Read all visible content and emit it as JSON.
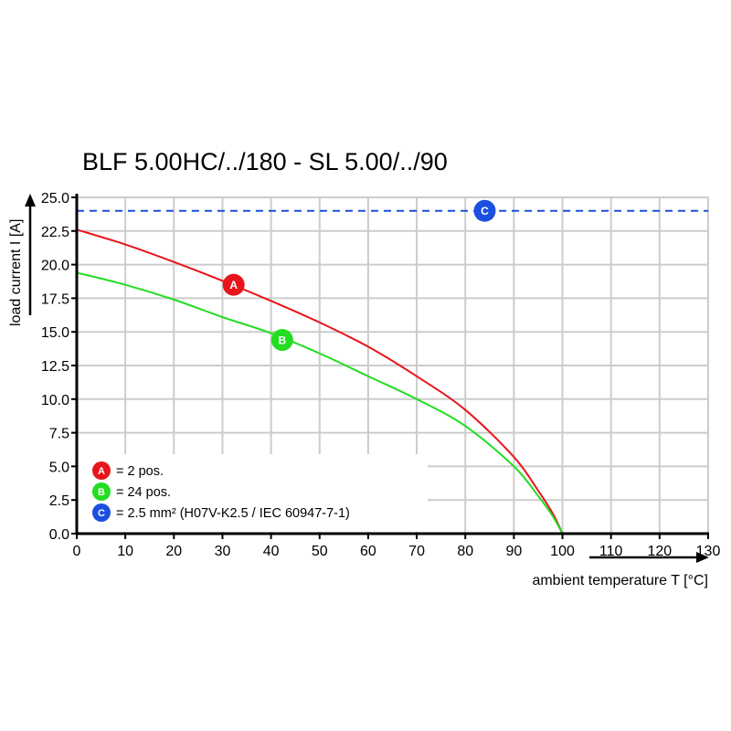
{
  "chart_data": {
    "type": "line",
    "title": "BLF 5.00HC/../180 - SL 5.00/../90",
    "xlabel": "ambient temperature T [°C]",
    "ylabel": "load current I [A]",
    "xlim": [
      0,
      130
    ],
    "ylim": [
      0,
      25
    ],
    "xticks": [
      "0",
      "10",
      "20",
      "30",
      "40",
      "50",
      "60",
      "70",
      "80",
      "90",
      "100",
      "110",
      "120",
      "130"
    ],
    "yticks": [
      "0.0",
      "2.5",
      "5.0",
      "7.5",
      "10.0",
      "12.5",
      "15.0",
      "17.5",
      "20.0",
      "22.5",
      "25.0"
    ],
    "grid": true,
    "legend_placement": "bottom-left",
    "series": [
      {
        "marker": "A",
        "name": "= 2 pos.",
        "color": "#e8141b",
        "style": "solid",
        "x": [
          0,
          10,
          20,
          30,
          40,
          50,
          60,
          70,
          80,
          90,
          95,
          98,
          100
        ],
        "y": [
          22.6,
          21.5,
          20.2,
          18.8,
          17.3,
          15.7,
          13.9,
          11.7,
          9.2,
          5.7,
          3.2,
          1.5,
          0
        ],
        "marker_at": [
          32.3,
          18.5
        ]
      },
      {
        "marker": "B",
        "name": "= 24 pos.",
        "color": "#22dd22",
        "style": "solid",
        "x": [
          0,
          10,
          20,
          30,
          40,
          50,
          60,
          70,
          80,
          90,
          95,
          98,
          100
        ],
        "y": [
          19.4,
          18.5,
          17.4,
          16.1,
          14.9,
          13.4,
          11.7,
          10.0,
          8.0,
          5.0,
          2.8,
          1.3,
          0
        ],
        "marker_at": [
          42.3,
          14.4
        ]
      },
      {
        "marker": "C",
        "name": "= 2.5 mm² (H07V-K2.5 / IEC 60947-7-1)",
        "color": "#1a4fe0",
        "style": "dashed",
        "x": [
          0,
          130
        ],
        "y": [
          24,
          24
        ],
        "marker_at": [
          84,
          24
        ]
      }
    ]
  }
}
